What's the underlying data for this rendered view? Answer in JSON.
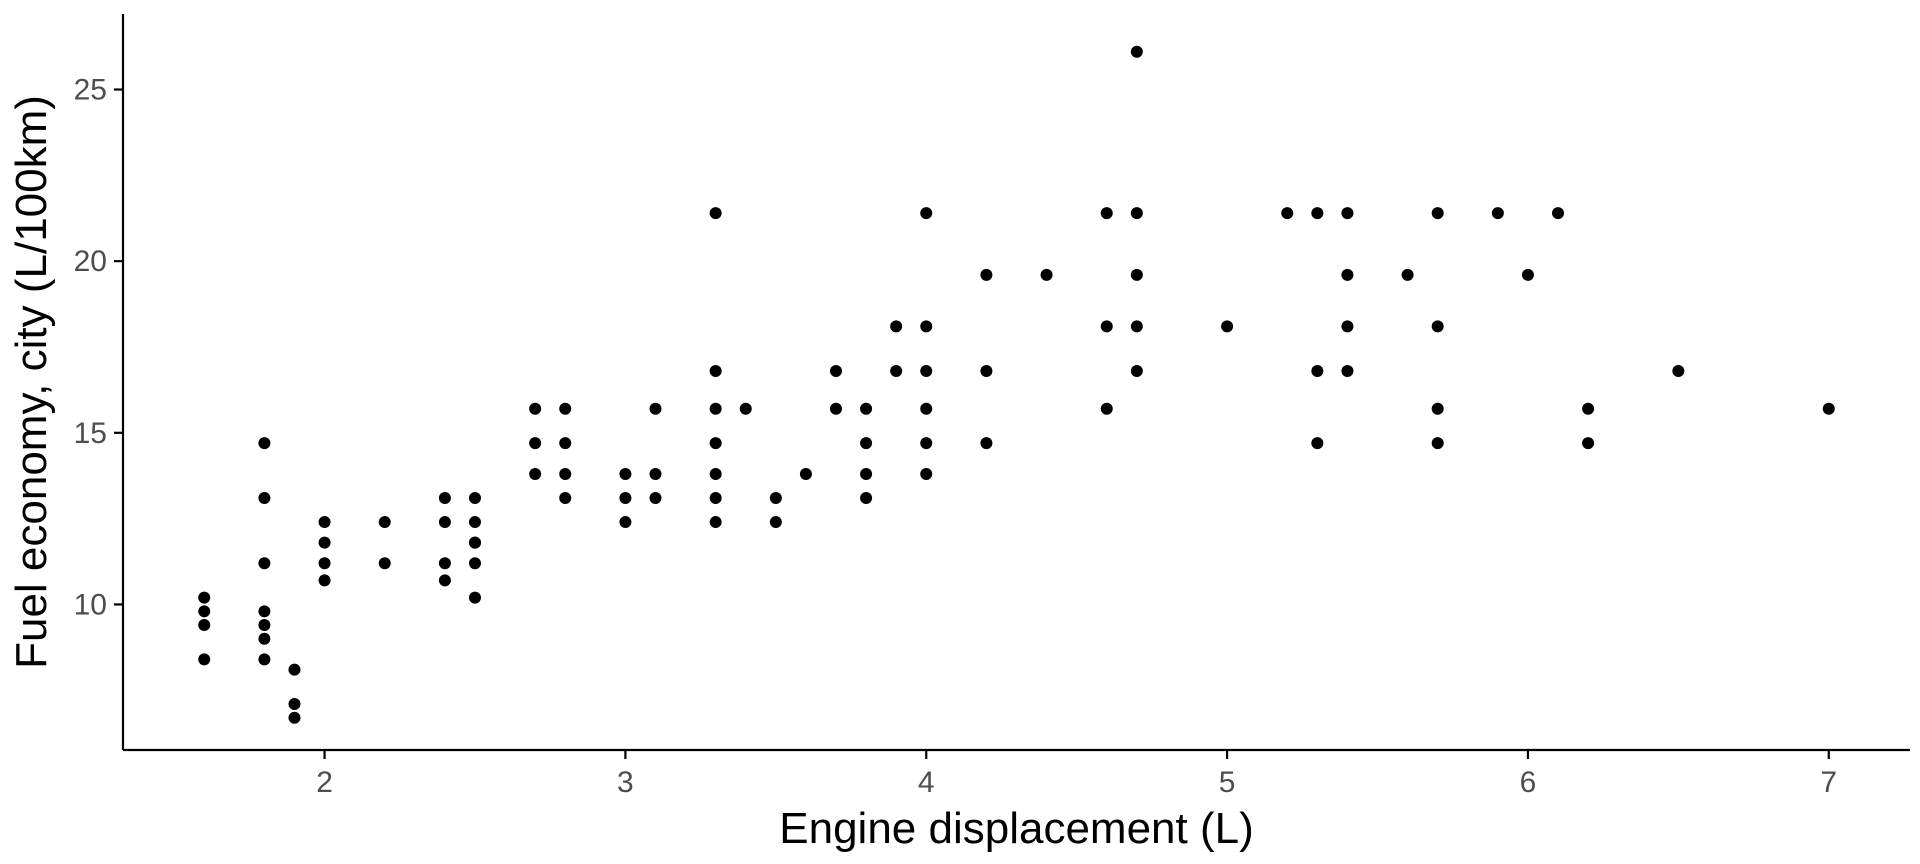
{
  "chart_data": {
    "type": "scatter",
    "xlabel": "Engine displacement (L)",
    "ylabel": "Fuel economy, city (L/100km)",
    "xlim": [
      1.33,
      7.27
    ],
    "ylim": [
      5.76,
      27.2
    ],
    "xticks": [
      2,
      3,
      4,
      5,
      6,
      7
    ],
    "yticks": [
      10,
      15,
      20,
      25
    ],
    "grid": false,
    "point_color": "#000000",
    "x": [
      1.6,
      1.6,
      1.6,
      1.6,
      1.8,
      1.8,
      1.8,
      1.8,
      1.8,
      1.8,
      1.8,
      1.9,
      1.9,
      1.9,
      2.0,
      2.0,
      2.0,
      2.0,
      2.2,
      2.2,
      2.4,
      2.4,
      2.4,
      2.4,
      2.5,
      2.5,
      2.5,
      2.5,
      2.5,
      2.5,
      2.7,
      2.7,
      2.7,
      2.8,
      2.8,
      2.8,
      2.8,
      3.0,
      3.0,
      3.0,
      3.1,
      3.1,
      3.1,
      3.3,
      3.3,
      3.3,
      3.3,
      3.3,
      3.3,
      3.3,
      3.4,
      3.5,
      3.5,
      3.6,
      3.7,
      3.7,
      3.8,
      3.8,
      3.8,
      3.8,
      3.9,
      3.9,
      4.0,
      4.0,
      4.0,
      4.0,
      4.0,
      4.0,
      4.2,
      4.2,
      4.2,
      4.4,
      4.6,
      4.6,
      4.6,
      4.7,
      4.7,
      4.7,
      4.7,
      4.7,
      5.0,
      5.2,
      5.3,
      5.3,
      5.3,
      5.4,
      5.4,
      5.4,
      5.4,
      5.6,
      5.7,
      5.7,
      5.7,
      5.7,
      5.9,
      6.0,
      6.1,
      6.2,
      6.2,
      6.5,
      7.0
    ],
    "y": [
      10.2,
      9.8,
      9.4,
      8.4,
      14.7,
      13.1,
      11.2,
      9.8,
      9.4,
      9.0,
      8.4,
      8.1,
      7.1,
      6.7,
      12.4,
      11.8,
      11.2,
      10.7,
      12.4,
      11.2,
      13.1,
      12.4,
      11.2,
      10.7,
      13.1,
      12.4,
      11.8,
      11.2,
      10.2,
      11.8,
      15.7,
      14.7,
      13.8,
      15.7,
      14.7,
      13.8,
      13.1,
      13.8,
      13.1,
      12.4,
      15.7,
      13.8,
      13.1,
      21.4,
      16.8,
      15.7,
      14.7,
      13.8,
      13.1,
      12.4,
      15.7,
      13.1,
      12.4,
      13.8,
      16.8,
      15.7,
      15.7,
      14.7,
      13.8,
      13.1,
      18.1,
      16.8,
      21.4,
      18.1,
      16.8,
      15.7,
      14.7,
      13.8,
      19.6,
      16.8,
      14.7,
      19.6,
      21.4,
      18.1,
      15.7,
      26.1,
      21.4,
      19.6,
      18.1,
      16.8,
      18.1,
      21.4,
      21.4,
      16.8,
      14.7,
      21.4,
      19.6,
      18.1,
      16.8,
      19.6,
      21.4,
      18.1,
      15.7,
      14.7,
      21.4,
      19.6,
      21.4,
      15.7,
      14.7,
      16.8,
      15.7
    ]
  }
}
